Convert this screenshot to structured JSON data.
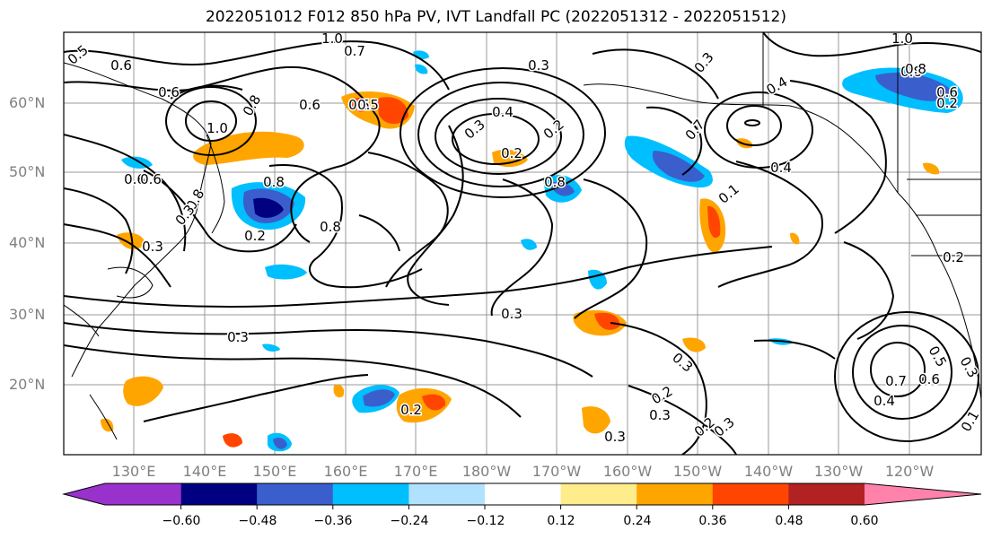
{
  "title": "2022051012 F012 850 hPa PV, IVT Landfall PC (2022051312 - 2022051512)",
  "lat_labels": [
    "60°N",
    "50°N",
    "40°N",
    "30°N",
    "20°N"
  ],
  "lon_labels": [
    "130°E",
    "140°E",
    "150°E",
    "160°E",
    "170°E",
    "180°W",
    "170°W",
    "160°W",
    "150°W",
    "140°W",
    "130°W",
    "120°W"
  ],
  "colorbar": {
    "colors": [
      "#9932cc",
      "#000080",
      "#3a5fcd",
      "#00bfff",
      "#b0e2ff",
      "#ffffff",
      "#ffec8b",
      "#ffa500",
      "#ff4500",
      "#b22222",
      "#ff82ab"
    ],
    "tick_labels": [
      "−0.60",
      "−0.48",
      "−0.36",
      "−0.24",
      "−0.12",
      "0.12",
      "0.24",
      "0.36",
      "0.48",
      "0.60"
    ]
  },
  "contour_labels": [
    "0.5",
    "0.6",
    "0.6",
    "0.6",
    "1.0",
    "0.8",
    "0.8",
    "1.0",
    "0.7",
    "0.6",
    "0.5",
    "0.4",
    "0.3",
    "0.3",
    "0.2",
    "0.8",
    "0.3",
    "0.6",
    "0.3",
    "0.2",
    "0.8",
    "0.5",
    "0.3",
    "0.4",
    "0.8",
    "0.2",
    "0.1",
    "0.3",
    "0.2",
    "0.3",
    "0.2",
    "0.3",
    "0.3",
    "0.2",
    "0.3",
    "0.7",
    "0.4",
    "0.5",
    "0.6",
    "0.3",
    "0.1",
    "0.2",
    "0.4",
    "1.0",
    "0.8",
    "0.6",
    "0.2",
    "0.3",
    "0.7",
    "0.8"
  ]
}
